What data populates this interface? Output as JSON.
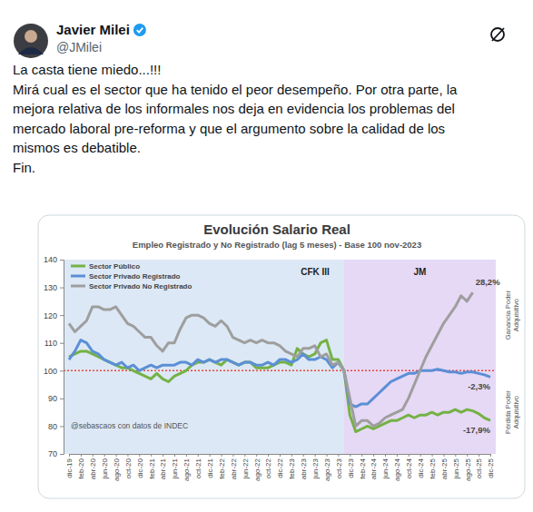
{
  "post": {
    "author": "Javier Milei",
    "handle": "@JMilei",
    "text_lines": [
      "La casta tiene miedo...!!!",
      "Mirá cual es el sector que ha tenido el peor desempeño. Por otra parte, la",
      "mejora relativa de los informales nos deja en evidencia los problemas del",
      "mercado laboral pre-reforma y que el argumento sobre la calidad de los",
      "mismos es debatible.",
      "Fin."
    ]
  },
  "chart_data": {
    "type": "line",
    "title": "Evolución Salario Real",
    "subtitle": "Empleo Registrado y No Registrado (lag 5 meses) - Base 100 nov-2023",
    "categories": [
      "dic-19",
      null,
      "feb-20",
      null,
      "abr-20",
      null,
      "jun-20",
      null,
      "ago-20",
      null,
      "oct-20",
      null,
      "dic-20",
      null,
      "feb-21",
      null,
      "abr-21",
      null,
      "jun-21",
      null,
      "ago-21",
      null,
      "oct-21",
      null,
      "dic-21",
      null,
      "feb-22",
      null,
      "abr-22",
      null,
      "jun-22",
      null,
      "ago-22",
      null,
      "oct-22",
      null,
      "dic-22",
      null,
      "feb-23",
      null,
      "abr-23",
      null,
      "jun-23",
      null,
      "ago-23",
      null,
      "oct-23",
      null,
      "dic-23",
      null,
      "feb-24",
      null,
      "abr-24",
      null,
      "jun-24",
      null,
      "ago-24",
      null,
      "oct-24",
      null,
      "dic-24",
      null,
      "feb-25",
      null,
      "abr-25",
      null,
      "jun-25",
      null,
      "ago-25",
      null,
      "oct-25",
      null,
      "dic-25"
    ],
    "series": [
      {
        "name": "Sector Público",
        "color": "#74b244",
        "values": [
          105,
          106,
          107,
          107,
          106,
          105,
          104,
          103,
          102,
          101,
          101,
          100,
          99,
          98,
          97,
          99,
          97,
          96,
          98,
          99,
          100,
          102,
          103,
          103,
          104,
          103,
          102,
          104,
          103,
          102,
          103,
          103,
          101,
          101,
          101,
          102,
          103,
          103,
          102,
          108,
          106,
          105,
          106,
          110,
          111,
          104,
          104,
          100,
          84,
          78,
          79,
          80,
          79,
          80,
          81,
          82,
          82,
          83,
          84,
          83,
          84,
          84,
          85,
          84,
          85,
          85,
          86,
          85,
          86,
          85.5,
          84.5,
          83,
          82.1
        ]
      },
      {
        "name": "Sector Privado Registrado",
        "color": "#5b8fd6",
        "values": [
          104,
          107,
          111,
          110,
          107,
          106,
          104,
          103,
          102,
          103,
          101,
          102,
          100,
          101,
          102,
          101,
          102,
          102,
          102,
          103,
          103,
          102,
          104,
          103,
          104,
          103,
          104,
          104,
          103,
          102,
          103,
          103,
          102,
          102,
          103,
          102,
          104,
          104,
          103,
          104,
          106,
          104,
          104,
          105,
          104,
          101,
          103,
          100,
          88,
          87,
          88,
          88,
          90,
          92,
          94,
          96,
          97,
          98,
          99,
          99,
          100,
          100,
          100,
          100.5,
          100,
          99.5,
          99.5,
          99,
          99.5,
          99.5,
          99,
          98.5,
          97.7
        ]
      },
      {
        "name": "Sector Privado No Registrado",
        "color": "#9e9e9e",
        "values": [
          117,
          114,
          116,
          118,
          123,
          123,
          122,
          122,
          123,
          120,
          117,
          116,
          114,
          112,
          112,
          109,
          107,
          110,
          110,
          115,
          119,
          120,
          120,
          119,
          117,
          116,
          118,
          116,
          112,
          111,
          110,
          111,
          110,
          111,
          110,
          110,
          109,
          107,
          106,
          105,
          108,
          108,
          109,
          105,
          106,
          102,
          103,
          100,
          90,
          80,
          82,
          82,
          80,
          81,
          83,
          84,
          85,
          86,
          90,
          95,
          100,
          105,
          109,
          113,
          117,
          120,
          123,
          127,
          125,
          128.2,
          null,
          null,
          null
        ]
      }
    ],
    "ylim": [
      70,
      140
    ],
    "yticks": [
      70,
      80,
      90,
      100,
      110,
      120,
      130,
      140
    ],
    "grid": false,
    "legend": "top-left",
    "periods": [
      {
        "label": "CFK III",
        "from": 0,
        "to": 47,
        "color": "#dce8f5"
      },
      {
        "label": "JM",
        "from": 47,
        "to": 72,
        "color": "#e6d9f6"
      }
    ],
    "reference_line": {
      "value": 100,
      "color": "#e8473c",
      "line_style": "dotted"
    },
    "annotations": [
      {
        "text": "28,2%",
        "series": 2
      },
      {
        "text": "-2,3%",
        "series": 1
      },
      {
        "text": "-17,9%",
        "series": 0
      }
    ],
    "side_labels": [
      "Ganancia Poder Adquisitivo",
      "Pérdida Poder Adquisitivo"
    ],
    "credit": "@sebascaos con datos de INDEC"
  }
}
